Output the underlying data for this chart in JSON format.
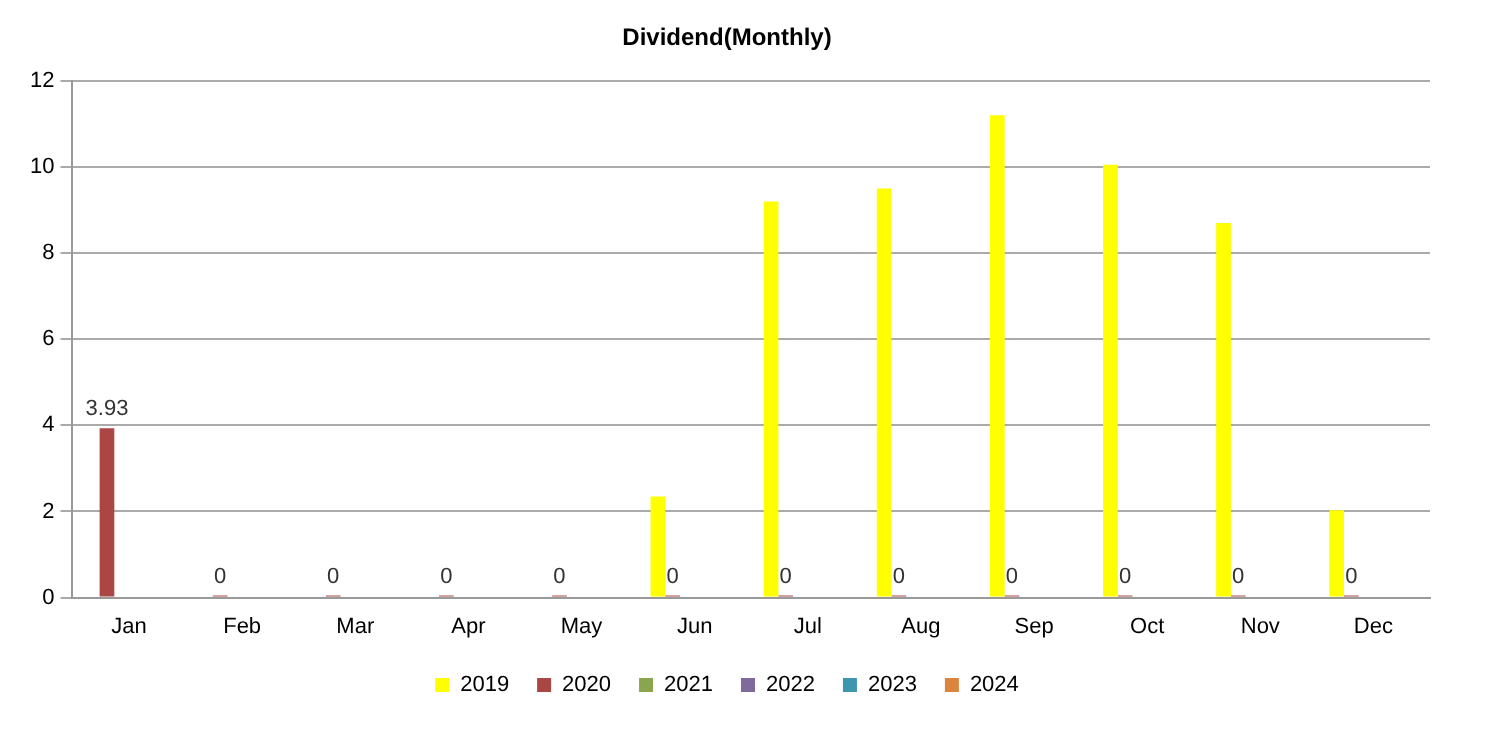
{
  "chart_data": {
    "type": "bar",
    "title": "Dividend(Monthly)",
    "categories": [
      "Jan",
      "Feb",
      "Mar",
      "Apr",
      "May",
      "Jun",
      "Jul",
      "Aug",
      "Sep",
      "Oct",
      "Nov",
      "Dec"
    ],
    "series": [
      {
        "name": "2019",
        "color": "#ffff00",
        "values": [
          null,
          null,
          null,
          null,
          null,
          2.35,
          9.2,
          9.5,
          11.2,
          10.05,
          8.7,
          2.03
        ]
      },
      {
        "name": "2020",
        "color": "#aa4643",
        "values": [
          3.93,
          0,
          0,
          0,
          0,
          0,
          0,
          0,
          0,
          0,
          0,
          0
        ],
        "value_labels": [
          "3.93",
          "0",
          "0",
          "0",
          "0",
          "0",
          "0",
          "0",
          "0",
          "0",
          "0",
          "0"
        ]
      },
      {
        "name": "2021",
        "color": "#89a54e",
        "values": [
          null,
          null,
          null,
          null,
          null,
          null,
          null,
          null,
          null,
          null,
          null,
          null
        ]
      },
      {
        "name": "2022",
        "color": "#80699b",
        "values": [
          null,
          null,
          null,
          null,
          null,
          null,
          null,
          null,
          null,
          null,
          null,
          null
        ]
      },
      {
        "name": "2023",
        "color": "#3d96ae",
        "values": [
          null,
          null,
          null,
          null,
          null,
          null,
          null,
          null,
          null,
          null,
          null,
          null
        ]
      },
      {
        "name": "2024",
        "color": "#db843d",
        "values": [
          null,
          null,
          null,
          null,
          null,
          null,
          null,
          null,
          null,
          null,
          null,
          null
        ]
      }
    ],
    "ylim": [
      0,
      12
    ],
    "yticks": [
      0,
      2,
      4,
      6,
      8,
      10,
      12
    ],
    "grid": "y",
    "legend": "bottom"
  }
}
